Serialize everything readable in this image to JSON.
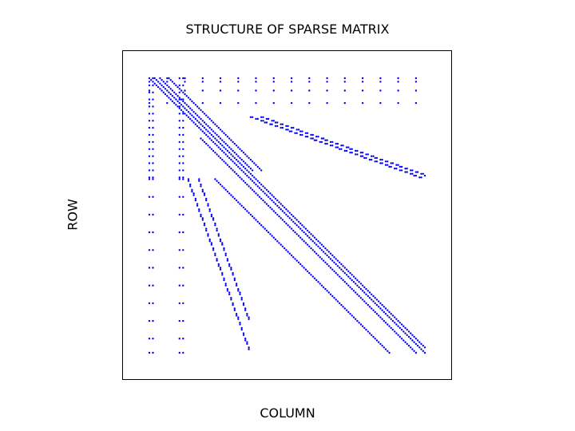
{
  "chart_data": {
    "type": "scatter",
    "subtype": "sparsity-pattern",
    "title": "STRUCTURE OF SPARSE MATRIX",
    "xlabel": "COLUMN",
    "ylabel": "ROW",
    "n": 156,
    "xlim": [
      1,
      156
    ],
    "ylim": [
      156,
      1
    ],
    "marker_color": "#0000ff",
    "grid": false,
    "axis_ticks": false,
    "bands": [
      {
        "rows": [
          1,
          156
        ],
        "col_offset": 0
      },
      {
        "rows": [
          1,
          156
        ],
        "col_offset": 3
      },
      {
        "rows": [
          1,
          53
        ],
        "col_offset": 6
      },
      {
        "rows": [
          1,
          53
        ],
        "col_offset": 11
      },
      {
        "rows": [
          58,
          156
        ],
        "col_offset": -20
      },
      {
        "rows": [
          35,
          156
        ],
        "col_offset": -5
      }
    ],
    "transposed_blocks": [
      {
        "rows": [
          23,
          57
        ],
        "col_start": 58,
        "col_slope": 2.8
      },
      {
        "rows": [
          23,
          57
        ],
        "col_start": 64,
        "col_slope": 2.8
      }
    ],
    "diagonal_strips": [
      {
        "cols": [
          23,
          57
        ],
        "row_start": 58,
        "row_slope": 2.8
      },
      {
        "cols": [
          29,
          57
        ],
        "row_start": 58,
        "row_slope": 2.8
      }
    ],
    "dotted_rows": [
      1,
      3,
      8,
      15
    ],
    "dotted_columns": [
      1,
      3,
      18,
      20
    ],
    "tail_rows": [
      58,
      68,
      78,
      88,
      98,
      108,
      118,
      128,
      138,
      148,
      156
    ]
  }
}
